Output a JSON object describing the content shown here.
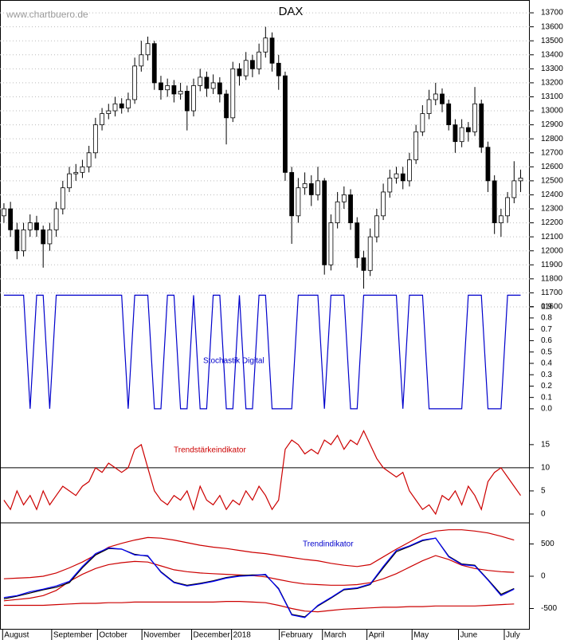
{
  "chart_data": [
    {
      "type": "candlestick",
      "title": "DAX",
      "source": "www.chartbuero.de",
      "color": "#000000",
      "grid": true,
      "x": [
        0,
        1,
        2,
        3,
        4,
        5,
        6,
        7,
        8,
        9,
        10,
        11,
        12,
        13,
        14,
        15,
        16,
        17,
        18,
        19,
        20,
        21,
        22,
        23,
        24,
        25,
        26,
        27,
        28,
        29,
        30,
        31,
        32,
        33,
        34,
        35,
        36,
        37,
        38,
        39,
        40,
        41,
        42,
        43,
        44,
        45,
        46,
        47,
        48,
        49,
        50,
        51,
        52,
        53,
        54,
        55,
        56,
        57,
        58,
        59,
        60,
        61,
        62,
        63,
        64,
        65,
        66,
        67,
        68,
        69,
        70,
        71,
        72,
        73,
        74,
        75,
        76,
        77,
        78,
        79
      ],
      "open": [
        12250,
        12300,
        12150,
        12000,
        12150,
        12200,
        12150,
        12050,
        12150,
        12300,
        12450,
        12550,
        12560,
        12600,
        12700,
        12900,
        12980,
        13000,
        13050,
        13020,
        13080,
        13320,
        13400,
        13480,
        13200,
        13150,
        13180,
        13120,
        13140,
        13000,
        13180,
        13240,
        13160,
        13200,
        13120,
        12950,
        13300,
        13250,
        13360,
        13300,
        13420,
        13520,
        13340,
        13250,
        12560,
        12250,
        12450,
        12480,
        12400,
        12500,
        11900,
        12200,
        12350,
        12400,
        12200,
        11950,
        11860,
        12100,
        12250,
        12420,
        12520,
        12550,
        12500,
        12650,
        12850,
        12980,
        13080,
        13120,
        13050,
        12900,
        12780,
        12880,
        12850,
        13050,
        12740,
        12500,
        12200,
        12250,
        12380,
        12500
      ],
      "high": [
        12340,
        12350,
        12200,
        12200,
        12260,
        12250,
        12180,
        12200,
        12350,
        12500,
        12600,
        12620,
        12650,
        12750,
        12950,
        13020,
        13050,
        13100,
        13090,
        13130,
        13380,
        13500,
        13530,
        13500,
        13250,
        13230,
        13220,
        13200,
        13180,
        13230,
        13300,
        13280,
        13260,
        13240,
        13150,
        13350,
        13340,
        13420,
        13400,
        13480,
        13600,
        13560,
        13400,
        13280,
        12600,
        12520,
        12560,
        12540,
        12600,
        12520,
        12260,
        12420,
        12460,
        12440,
        12240,
        12000,
        12160,
        12300,
        12480,
        12580,
        12600,
        12600,
        12700,
        12900,
        13040,
        13150,
        13200,
        13160,
        13080,
        12940,
        12940,
        12920,
        13170,
        13080,
        12780,
        12540,
        12300,
        12420,
        12640,
        12580
      ],
      "low": [
        12200,
        12100,
        11940,
        11960,
        12100,
        12100,
        11880,
        12000,
        12100,
        12260,
        12420,
        12500,
        12520,
        12560,
        12660,
        12860,
        12940,
        12960,
        12980,
        12990,
        13050,
        13280,
        13360,
        13150,
        13080,
        13100,
        13060,
        13080,
        12860,
        12960,
        13140,
        13100,
        13120,
        13060,
        12760,
        12920,
        13180,
        13220,
        13240,
        13260,
        13380,
        13280,
        13150,
        12500,
        12050,
        12200,
        12400,
        12320,
        12360,
        11830,
        11860,
        12160,
        12300,
        12150,
        11880,
        11730,
        11820,
        12060,
        12220,
        12380,
        12480,
        12440,
        12460,
        12620,
        12820,
        12940,
        13040,
        12990,
        12860,
        12700,
        12740,
        12780,
        12820,
        12700,
        12420,
        12120,
        12100,
        12200,
        12340,
        12420
      ],
      "close": [
        12300,
        12150,
        12000,
        12150,
        12200,
        12150,
        12050,
        12150,
        12300,
        12450,
        12550,
        12560,
        12600,
        12700,
        12900,
        12980,
        13000,
        13050,
        13020,
        13080,
        13320,
        13400,
        13480,
        13200,
        13150,
        13180,
        13120,
        13140,
        13000,
        13180,
        13240,
        13160,
        13200,
        13120,
        12950,
        13300,
        13250,
        13360,
        13300,
        13420,
        13520,
        13340,
        13250,
        12560,
        12250,
        12450,
        12480,
        12400,
        12500,
        11900,
        12200,
        12350,
        12400,
        12200,
        11950,
        11860,
        12100,
        12250,
        12420,
        12520,
        12550,
        12500,
        12650,
        12850,
        12980,
        13080,
        13120,
        13050,
        12900,
        12780,
        12880,
        12850,
        13050,
        12740,
        12500,
        12200,
        12250,
        12380,
        12500,
        12520
      ],
      "xlim": [
        -0.6,
        80.4
      ],
      "ylim": [
        11543,
        13763
      ],
      "yticks": [
        11600,
        11700,
        11800,
        11900,
        12000,
        12100,
        12200,
        12300,
        12400,
        12500,
        12600,
        12700,
        12800,
        12900,
        13000,
        13100,
        13200,
        13300,
        13400,
        13500,
        13600,
        13700
      ],
      "xticks": [
        {
          "value": -0.2,
          "label": "August"
        },
        {
          "value": 7.3,
          "label": "September"
        },
        {
          "value": 14.3,
          "label": "October"
        },
        {
          "value": 21.1,
          "label": "November"
        },
        {
          "value": 28.7,
          "label": "December"
        },
        {
          "value": 34.8,
          "label": "2018"
        },
        {
          "value": 42.1,
          "label": "February"
        },
        {
          "value": 48.7,
          "label": "March"
        },
        {
          "value": 55.5,
          "label": "April"
        },
        {
          "value": 62.4,
          "label": "May"
        },
        {
          "value": 69.5,
          "label": "June"
        },
        {
          "value": 76.5,
          "label": "July"
        }
      ]
    },
    {
      "type": "line",
      "title": "Stochastik Digital",
      "title_color": "#0000cc",
      "x": [
        0,
        1,
        2,
        3,
        4,
        5,
        6,
        7,
        8,
        9,
        10,
        11,
        12,
        13,
        14,
        15,
        16,
        17,
        18,
        19,
        20,
        21,
        22,
        23,
        24,
        25,
        26,
        27,
        28,
        29,
        30,
        31,
        32,
        33,
        34,
        35,
        36,
        37,
        38,
        39,
        40,
        41,
        42,
        43,
        44,
        45,
        46,
        47,
        48,
        49,
        50,
        51,
        52,
        53,
        54,
        55,
        56,
        57,
        58,
        59,
        60,
        61,
        62,
        63,
        64,
        65,
        66,
        67,
        68,
        69,
        70,
        71,
        72,
        73,
        74,
        75,
        76,
        77,
        78,
        79
      ],
      "series": [
        {
          "color": "#0000cc",
          "values": [
            1,
            1,
            1,
            1,
            0,
            1,
            1,
            0,
            1,
            1,
            1,
            1,
            1,
            1,
            1,
            1,
            1,
            1,
            1,
            0,
            1,
            1,
            1,
            0,
            0,
            1,
            1,
            0,
            0,
            1,
            0,
            0,
            1,
            1,
            0,
            0,
            1,
            0,
            0,
            1,
            1,
            0,
            0,
            0,
            0,
            1,
            1,
            1,
            1,
            0,
            1,
            1,
            1,
            0,
            0,
            1,
            1,
            1,
            1,
            1,
            1,
            0,
            1,
            1,
            1,
            0,
            0,
            0,
            0,
            0,
            0,
            1,
            1,
            1,
            0,
            0,
            0,
            1,
            1,
            1
          ]
        }
      ],
      "xlim": [
        -0.6,
        80.4
      ],
      "ylim": [
        -0.12,
        1.01
      ],
      "yticks": [
        {
          "value": 0,
          "label": "0.0"
        },
        0.1,
        0.2,
        0.3,
        0.4,
        0.5,
        0.6,
        0.7,
        0.8,
        0.9
      ]
    },
    {
      "type": "line",
      "title": "Trendstärkeindikator",
      "title_color": "#cc0000",
      "reference_line": 10,
      "x": [
        0,
        1,
        2,
        3,
        4,
        5,
        6,
        7,
        8,
        9,
        10,
        11,
        12,
        13,
        14,
        15,
        16,
        17,
        18,
        19,
        20,
        21,
        22,
        23,
        24,
        25,
        26,
        27,
        28,
        29,
        30,
        31,
        32,
        33,
        34,
        35,
        36,
        37,
        38,
        39,
        40,
        41,
        42,
        43,
        44,
        45,
        46,
        47,
        48,
        49,
        50,
        51,
        52,
        53,
        54,
        55,
        56,
        57,
        58,
        59,
        60,
        61,
        62,
        63,
        64,
        65,
        66,
        67,
        68,
        69,
        70,
        71,
        72,
        73,
        74,
        75,
        76,
        77,
        78,
        79
      ],
      "series": [
        {
          "color": "#cc0000",
          "values": [
            3,
            1,
            5,
            2,
            4,
            1,
            5,
            2,
            4,
            6,
            5,
            4,
            6,
            7,
            10,
            9,
            11,
            10,
            9,
            10,
            14,
            15,
            10,
            5,
            3,
            2,
            4,
            3,
            5,
            1,
            6,
            3,
            2,
            4,
            1,
            3,
            2,
            5,
            3,
            6,
            4,
            1,
            3,
            14,
            16,
            15,
            13,
            14,
            13,
            16,
            15,
            17,
            14,
            16,
            15,
            18,
            15,
            12,
            10,
            9,
            8,
            9,
            5,
            3,
            1,
            2,
            0,
            4,
            3,
            5,
            2,
            6,
            4,
            1,
            7,
            9,
            10,
            8,
            6,
            4
          ]
        }
      ],
      "xlim": [
        -0.6,
        80.4
      ],
      "ylim": [
        -1.9,
        19.8
      ],
      "yticks": [
        0,
        5,
        10,
        15
      ]
    },
    {
      "type": "line",
      "title": "Trendindikator",
      "title_color": "#0000cc",
      "x": [
        0,
        2,
        4,
        6,
        8,
        10,
        12,
        14,
        16,
        18,
        20,
        22,
        24,
        26,
        28,
        30,
        32,
        34,
        36,
        38,
        40,
        42,
        44,
        46,
        48,
        50,
        52,
        54,
        56,
        58,
        60,
        62,
        64,
        66,
        68,
        70,
        72,
        74,
        76,
        78
      ],
      "series": [
        {
          "color": "#cc0000",
          "values": [
            -40,
            -30,
            -20,
            0,
            50,
            130,
            220,
            330,
            450,
            510,
            560,
            600,
            590,
            560,
            520,
            480,
            450,
            430,
            400,
            370,
            350,
            320,
            290,
            260,
            240,
            200,
            170,
            150,
            180,
            300,
            420,
            530,
            640,
            700,
            720,
            720,
            700,
            670,
            620,
            560
          ]
        },
        {
          "color": "#cc0000",
          "values": [
            -380,
            -360,
            -340,
            -300,
            -220,
            -80,
            30,
            120,
            180,
            210,
            230,
            220,
            160,
            100,
            70,
            50,
            40,
            30,
            20,
            10,
            -10,
            -50,
            -90,
            -120,
            -130,
            -140,
            -140,
            -130,
            -100,
            -40,
            40,
            140,
            240,
            320,
            260,
            170,
            120,
            90,
            70,
            60
          ]
        },
        {
          "color": "#cc0000",
          "values": [
            -450,
            -450,
            -450,
            -450,
            -440,
            -430,
            -420,
            -420,
            -410,
            -410,
            -400,
            -400,
            -400,
            -400,
            -400,
            -400,
            -400,
            -390,
            -390,
            -400,
            -410,
            -450,
            -500,
            -540,
            -550,
            -530,
            -510,
            -500,
            -490,
            -480,
            -480,
            -470,
            -470,
            -460,
            -460,
            -460,
            -460,
            -450,
            -440,
            -430
          ]
        },
        {
          "color": "#000000",
          "values": [
            -350,
            -310,
            -260,
            -210,
            -170,
            -100,
            130,
            330,
            430,
            420,
            340,
            310,
            70,
            -90,
            -140,
            -110,
            -70,
            -20,
            10,
            20,
            20,
            -190,
            -590,
            -630,
            -460,
            -340,
            -210,
            -190,
            -130,
            130,
            380,
            460,
            550,
            590,
            310,
            190,
            170,
            -50,
            -280,
            -190
          ]
        },
        {
          "color": "#0000ff",
          "values": [
            -330,
            -300,
            -240,
            -200,
            -150,
            -80,
            150,
            350,
            440,
            420,
            330,
            320,
            60,
            -100,
            -150,
            -120,
            -80,
            -30,
            0,
            10,
            30,
            -200,
            -600,
            -640,
            -450,
            -330,
            -200,
            -180,
            -120,
            150,
            400,
            470,
            560,
            590,
            300,
            180,
            160,
            -60,
            -300,
            -200
          ]
        }
      ],
      "xlim": [
        -0.6,
        80.4
      ],
      "ylim": [
        -827,
        827
      ],
      "yticks": [
        -500,
        0,
        500
      ]
    }
  ]
}
